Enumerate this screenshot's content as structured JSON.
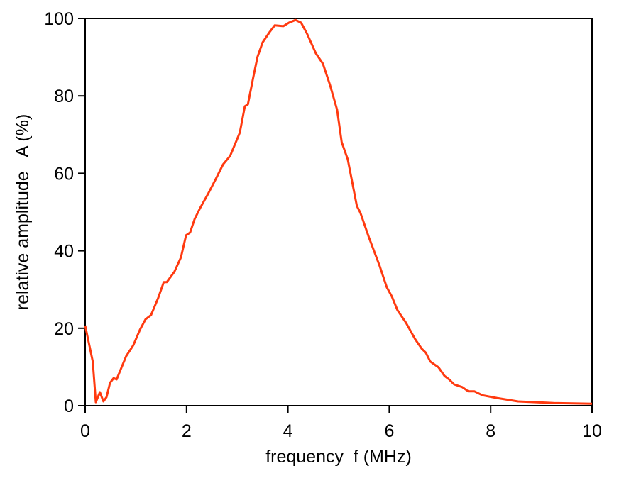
{
  "chart_data": {
    "type": "line",
    "title": "",
    "xlabel": "frequency  f (MHz)",
    "ylabel": "relative amplitude   A (%)",
    "xlim": [
      0,
      10
    ],
    "ylim": [
      0,
      100
    ],
    "xticks": [
      0,
      2,
      4,
      6,
      8,
      10
    ],
    "yticks": [
      0,
      20,
      40,
      60,
      80,
      100
    ],
    "grid": false,
    "series": [
      {
        "name": "amplitude",
        "color": "#ff3a10",
        "x": [
          0,
          0.15,
          0.21,
          0.29,
          0.36,
          0.42,
          0.49,
          0.56,
          0.62,
          0.73,
          0.81,
          0.95,
          1.08,
          1.19,
          1.3,
          1.44,
          1.55,
          1.61,
          1.76,
          1.89,
          1.99,
          2.07,
          2.16,
          2.27,
          2.42,
          2.58,
          2.72,
          2.86,
          3.05,
          3.15,
          3.21,
          3.32,
          3.4,
          3.5,
          3.64,
          3.74,
          3.91,
          4.02,
          4.15,
          4.26,
          4.38,
          4.55,
          4.69,
          4.83,
          4.97,
          5.06,
          5.18,
          5.36,
          5.43,
          5.6,
          5.81,
          5.95,
          6.05,
          6.16,
          6.33,
          6.51,
          6.64,
          6.72,
          6.81,
          6.97,
          7.09,
          7.18,
          7.28,
          7.44,
          7.56,
          7.68,
          7.84,
          8.12,
          8.54,
          9.24,
          10
        ],
        "y": [
          20.7,
          11.4,
          0.9,
          3.5,
          1.1,
          2.2,
          5.9,
          7.1,
          6.8,
          10.3,
          12.8,
          15.6,
          19.6,
          22.3,
          23.4,
          27.8,
          31.9,
          31.9,
          34.6,
          38.3,
          44,
          44.7,
          48.2,
          51.1,
          54.6,
          58.6,
          62.3,
          64.5,
          70.5,
          77.3,
          77.8,
          85,
          90.1,
          93.8,
          96.5,
          98.2,
          98,
          98.9,
          99.6,
          98.9,
          96,
          91,
          88.3,
          82.8,
          76.4,
          68.1,
          63.6,
          51.6,
          49.8,
          43.4,
          36.1,
          30.6,
          28.2,
          24.7,
          21.4,
          17.2,
          14.7,
          13.7,
          11.4,
          9.9,
          7.7,
          6.8,
          5.5,
          4.8,
          3.7,
          3.7,
          2.7,
          2,
          1.1,
          0.7,
          0.5
        ]
      }
    ]
  }
}
